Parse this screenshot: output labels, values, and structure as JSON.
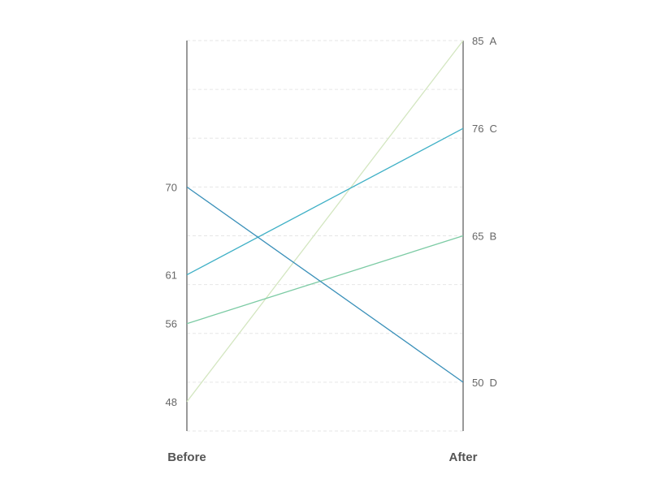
{
  "chart_data": {
    "type": "slope",
    "categories": [
      "Before",
      "After"
    ],
    "series": [
      {
        "name": "A",
        "values": [
          48,
          85
        ],
        "color": "#d3e6c0"
      },
      {
        "name": "B",
        "values": [
          56,
          65
        ],
        "color": "#7ccba4"
      },
      {
        "name": "C",
        "values": [
          61,
          76
        ],
        "color": "#3fb0c6"
      },
      {
        "name": "D",
        "values": [
          70,
          50
        ],
        "color": "#3a90b9"
      }
    ],
    "ylim": [
      45,
      85
    ],
    "grid": true,
    "grid_step": 5,
    "axis_color": "#999999",
    "grid_color": "#e6e6e6"
  }
}
